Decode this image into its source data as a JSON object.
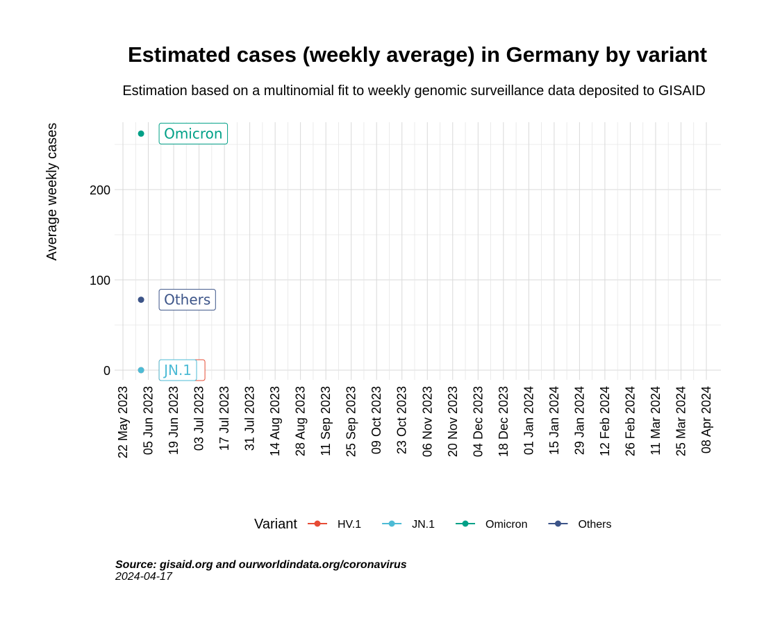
{
  "chart_data": {
    "type": "line",
    "title": "Estimated cases (weekly average) in Germany by variant",
    "subtitle": "Estimation based on a multinomial fit to weekly genomic surveillance data deposited to GISAID",
    "xlabel": "",
    "ylabel": "Average weekly cases",
    "xlim": [
      "2023-05-22",
      "2024-04-08"
    ],
    "ylim": [
      0,
      275
    ],
    "x_ticks": [
      "22 May 2023",
      "05 Jun 2023",
      "19 Jun 2023",
      "03 Jul 2023",
      "17 Jul 2023",
      "31 Jul 2023",
      "14 Aug 2023",
      "28 Aug 2023",
      "11 Sep 2023",
      "25 Sep 2023",
      "09 Oct 2023",
      "23 Oct 2023",
      "06 Nov 2023",
      "20 Nov 2023",
      "04 Dec 2023",
      "18 Dec 2023",
      "01 Jan 2024",
      "15 Jan 2024",
      "29 Jan 2024",
      "12 Feb 2024",
      "26 Feb 2024",
      "11 Mar 2024",
      "25 Mar 2024",
      "08 Apr 2024"
    ],
    "y_ticks": [
      "0",
      "100",
      "200"
    ],
    "grid": true,
    "legend_position": "bottom",
    "legend_title": "Variant",
    "series": [
      {
        "name": "HV.1",
        "color": "#e64b35",
        "points": [
          {
            "x": "2023-06-01",
            "y": 0
          }
        ],
        "label": ""
      },
      {
        "name": "JN.1",
        "color": "#4dbbd5",
        "points": [
          {
            "x": "2023-06-01",
            "y": 0
          }
        ],
        "label": "JN.1"
      },
      {
        "name": "Omicron",
        "color": "#00a087",
        "points": [
          {
            "x": "2023-06-01",
            "y": 262
          }
        ],
        "label": "Omicron"
      },
      {
        "name": "Others",
        "color": "#3c5488",
        "points": [
          {
            "x": "2023-06-01",
            "y": 78
          }
        ],
        "label": "Others"
      }
    ]
  },
  "caption": {
    "source": "Source: gisaid.org and ourworldindata.org/coronavirus",
    "date": "2024-04-17"
  }
}
